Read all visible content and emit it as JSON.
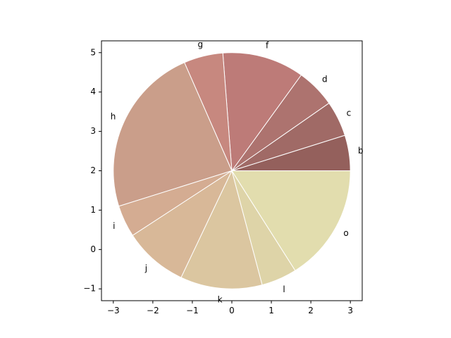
{
  "chart_data": {
    "type": "pie",
    "title": "",
    "xlabel": "",
    "ylabel": "",
    "center": [
      0,
      2
    ],
    "radius": 3,
    "xlim": [
      -3.3,
      3.3
    ],
    "ylim": [
      -1.3,
      5.3
    ],
    "xticks": [
      -3,
      -2,
      -1,
      0,
      1,
      2,
      3
    ],
    "yticks": [
      -1,
      0,
      1,
      2,
      3,
      4,
      5
    ],
    "xtick_labels": [
      "−3",
      "−2",
      "−1",
      "0",
      "1",
      "2",
      "3"
    ],
    "ytick_labels": [
      "−1",
      "0",
      "1",
      "2",
      "3",
      "4",
      "5"
    ],
    "grid": false,
    "start_angle_deg": 0,
    "direction": "counterclockwise",
    "wedge_edge_color": "#ffffff",
    "slices": [
      {
        "label": "b",
        "value": 5.0,
        "color": "#94605c"
      },
      {
        "label": "c",
        "value": 5.0,
        "color": "#a06a66"
      },
      {
        "label": "d",
        "value": 5.5,
        "color": "#ad736f"
      },
      {
        "label": "f",
        "value": 11.5,
        "color": "#bd7b78"
      },
      {
        "label": "g",
        "value": 5.5,
        "color": "#c7887f"
      },
      {
        "label": "h",
        "value": 24.0,
        "color": "#ca9e8a"
      },
      {
        "label": "i",
        "value": 4.5,
        "color": "#d4ac92"
      },
      {
        "label": "j",
        "value": 9.0,
        "color": "#d8b898"
      },
      {
        "label": "k",
        "value": 11.5,
        "color": "#dbc6a0"
      },
      {
        "label": "l",
        "value": 5.0,
        "color": "#ded4a8"
      },
      {
        "label": "o",
        "value": 16.5,
        "color": "#e2ddae"
      }
    ]
  }
}
